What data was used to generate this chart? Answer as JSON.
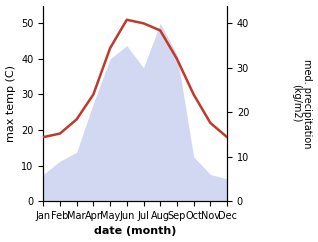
{
  "months": [
    "Jan",
    "Feb",
    "Mar",
    "Apr",
    "May",
    "Jun",
    "Jul",
    "Aug",
    "Sep",
    "Oct",
    "Nov",
    "Dec"
  ],
  "month_indices": [
    1,
    2,
    3,
    4,
    5,
    6,
    7,
    8,
    9,
    10,
    11,
    12
  ],
  "precipitation": [
    6,
    9,
    11,
    22,
    32,
    35,
    30,
    40,
    33,
    10,
    6,
    5
  ],
  "temperature": [
    18,
    19,
    23,
    30,
    43,
    51,
    50,
    48,
    40,
    30,
    22,
    18
  ],
  "precip_color": "#b0b8e8",
  "temp_color": "#c0392b",
  "temp_ylim": [
    0,
    55
  ],
  "temp_yticks": [
    0,
    10,
    20,
    30,
    40,
    50
  ],
  "precip_ylim": [
    0,
    44
  ],
  "precip_yticks": [
    0,
    10,
    20,
    30,
    40
  ],
  "ylabel_left": "max temp (C)",
  "ylabel_right": "med. precipitation\n(kg/m2)",
  "xlabel": "date (month)",
  "bg_color": "#ffffff",
  "fill_alpha": 0.55,
  "line_width": 1.8,
  "figsize": [
    3.18,
    2.42
  ],
  "dpi": 100
}
